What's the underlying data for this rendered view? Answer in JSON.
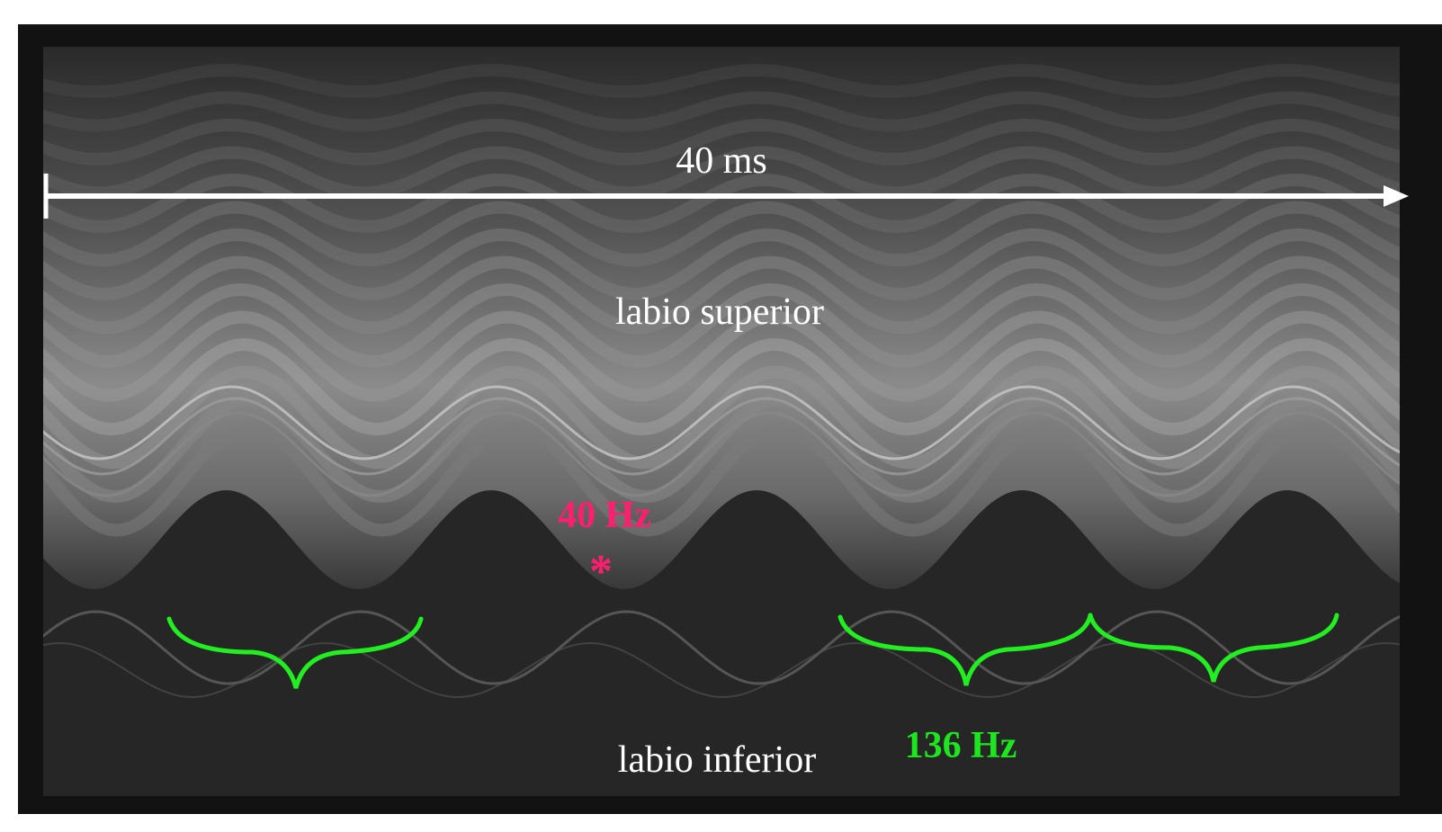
{
  "annotations": {
    "duration": "40 ms",
    "upper_lip": "labio superior",
    "frequency_low": "40 Hz",
    "marker": "*",
    "lower_lip": "labio inferior",
    "frequency_high": "136 Hz"
  }
}
